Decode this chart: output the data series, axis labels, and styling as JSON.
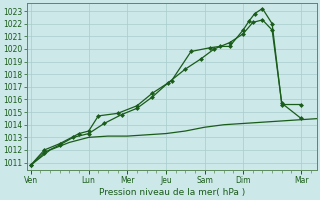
{
  "xlabel": "Pression niveau de la mer( hPa )",
  "bg_color": "#cce8e8",
  "grid_color": "#a8cccc",
  "line_color": "#1a5c1a",
  "spine_color": "#5a8a5a",
  "ylim": [
    1010.4,
    1023.6
  ],
  "yticks": [
    1011,
    1012,
    1013,
    1014,
    1015,
    1016,
    1017,
    1018,
    1019,
    1020,
    1021,
    1022,
    1023
  ],
  "day_labels": [
    "Ven",
    "Lun",
    "Mer",
    "Jeu",
    "Sam",
    "Dim",
    "Mar"
  ],
  "day_positions": [
    0,
    3,
    5,
    7,
    9,
    11,
    14
  ],
  "xlim": [
    -0.2,
    14.8
  ],
  "num_minor_ticks": 28,
  "series_flat_x": [
    0,
    1,
    2,
    3,
    4,
    5,
    6,
    7,
    8,
    9,
    10,
    11,
    12,
    13,
    14,
    15
  ],
  "series_flat_y": [
    1010.8,
    1012.0,
    1012.6,
    1013.0,
    1013.1,
    1013.1,
    1013.2,
    1013.3,
    1013.5,
    1013.8,
    1014.0,
    1014.1,
    1014.2,
    1014.3,
    1014.4,
    1014.5
  ],
  "series_mid_x": [
    0,
    0.7,
    1.5,
    2.2,
    3.0,
    3.8,
    4.7,
    5.5,
    6.3,
    7.1,
    8.0,
    8.8,
    9.5,
    10.3,
    11.0,
    11.5,
    12.0,
    12.5,
    13.0,
    14.0
  ],
  "series_mid_y": [
    1010.8,
    1011.8,
    1012.4,
    1013.0,
    1013.3,
    1014.1,
    1014.8,
    1015.3,
    1016.2,
    1017.3,
    1018.4,
    1019.2,
    1020.0,
    1020.5,
    1021.2,
    1022.1,
    1022.3,
    1021.5,
    1015.7,
    1014.5
  ],
  "series_high_x": [
    0,
    0.7,
    1.5,
    2.5,
    3.0,
    3.5,
    4.5,
    5.5,
    6.3,
    7.3,
    8.3,
    9.3,
    9.8,
    10.3,
    11.0,
    11.3,
    11.6,
    12.0,
    12.5,
    13.0,
    14.0
  ],
  "series_high_y": [
    1010.8,
    1012.0,
    1012.5,
    1013.3,
    1013.5,
    1014.7,
    1014.9,
    1015.5,
    1016.5,
    1017.5,
    1019.8,
    1020.1,
    1020.2,
    1020.2,
    1021.5,
    1022.2,
    1022.8,
    1023.2,
    1022.0,
    1015.6,
    1015.6
  ]
}
